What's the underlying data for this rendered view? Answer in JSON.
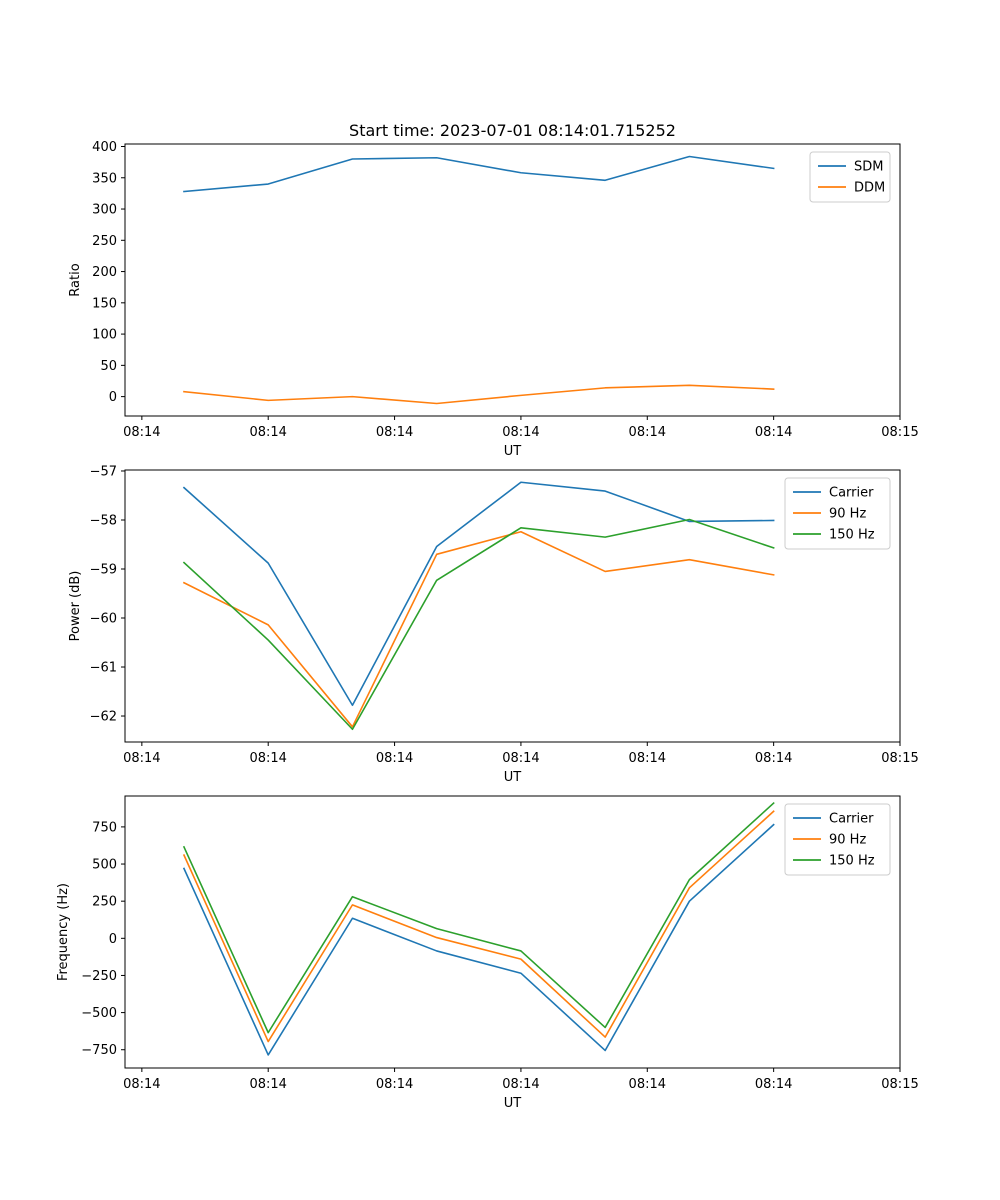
{
  "figure_title": "Start time: 2023-07-01 08:14:01.715252",
  "chart_data": [
    {
      "type": "line",
      "title": "Start time: 2023-07-01 08:14:01.715252",
      "xlabel": "UT",
      "ylabel": "Ratio",
      "x": [
        1,
        2,
        3,
        4,
        5,
        6,
        7,
        8
      ],
      "xlim": [
        0.3,
        9.5
      ],
      "x_ticks": [
        0.5,
        2.0,
        3.5,
        5.0,
        6.5,
        8.0,
        9.5
      ],
      "x_tick_labels": [
        "08:14",
        "08:14",
        "08:14",
        "08:14",
        "08:14",
        "08:14",
        "08:15"
      ],
      "ylim": [
        -31,
        404
      ],
      "y_ticks": [
        0,
        50,
        100,
        150,
        200,
        250,
        300,
        350,
        400
      ],
      "y_tick_labels": [
        "0",
        "50",
        "100",
        "150",
        "200",
        "250",
        "300",
        "350",
        "400"
      ],
      "legend_position": "top-right",
      "series": [
        {
          "name": "SDM",
          "color": "#1f77b4",
          "values": [
            328,
            340,
            380,
            382,
            358,
            346,
            384,
            365
          ]
        },
        {
          "name": "DDM",
          "color": "#ff7f0e",
          "values": [
            8,
            -6,
            0,
            -11,
            2,
            14,
            18,
            12
          ]
        }
      ]
    },
    {
      "type": "line",
      "title": "",
      "xlabel": "UT",
      "ylabel": "Power (dB)",
      "x": [
        1,
        2,
        3,
        4,
        5,
        6,
        7,
        8
      ],
      "xlim": [
        0.3,
        9.5
      ],
      "x_ticks": [
        0.5,
        2.0,
        3.5,
        5.0,
        6.5,
        8.0,
        9.5
      ],
      "x_tick_labels": [
        "08:14",
        "08:14",
        "08:14",
        "08:14",
        "08:14",
        "08:14",
        "08:15"
      ],
      "ylim": [
        -62.53,
        -56.98
      ],
      "y_ticks": [
        -62,
        -61,
        -60,
        -59,
        -58,
        -57
      ],
      "y_tick_labels": [
        "−62",
        "−61",
        "−60",
        "−59",
        "−58",
        "−57"
      ],
      "legend_position": "top-right",
      "series": [
        {
          "name": "Carrier",
          "color": "#1f77b4",
          "values": [
            -57.34,
            -58.88,
            -61.78,
            -58.54,
            -57.23,
            -57.41,
            -58.03,
            -58.01
          ]
        },
        {
          "name": "90 Hz",
          "color": "#ff7f0e",
          "values": [
            -59.28,
            -60.14,
            -62.22,
            -58.7,
            -58.24,
            -59.05,
            -58.81,
            -59.12
          ]
        },
        {
          "name": "150 Hz",
          "color": "#2ca02c",
          "values": [
            -58.87,
            -60.45,
            -62.27,
            -59.23,
            -58.16,
            -58.35,
            -57.99,
            -58.57
          ]
        }
      ]
    },
    {
      "type": "line",
      "title": "",
      "xlabel": "UT",
      "ylabel": "Frequency (Hz)",
      "x": [
        1,
        2,
        3,
        4,
        5,
        6,
        7,
        8
      ],
      "xlim": [
        0.3,
        9.5
      ],
      "x_ticks": [
        0.5,
        2.0,
        3.5,
        5.0,
        6.5,
        8.0,
        9.5
      ],
      "x_tick_labels": [
        "08:14",
        "08:14",
        "08:14",
        "08:14",
        "08:14",
        "08:14",
        "08:15"
      ],
      "ylim": [
        -873,
        958
      ],
      "y_ticks": [
        -750,
        -500,
        -250,
        0,
        250,
        500,
        750
      ],
      "y_tick_labels": [
        "−750",
        "−500",
        "−250",
        "0",
        "250",
        "500",
        "750"
      ],
      "legend_position": "top-right",
      "series": [
        {
          "name": "Carrier",
          "color": "#1f77b4",
          "values": [
            470,
            -785,
            135,
            -85,
            -235,
            -755,
            250,
            765
          ]
        },
        {
          "name": "90 Hz",
          "color": "#ff7f0e",
          "values": [
            560,
            -695,
            225,
            5,
            -140,
            -665,
            340,
            855
          ]
        },
        {
          "name": "150 Hz",
          "color": "#2ca02c",
          "values": [
            615,
            -635,
            280,
            65,
            -85,
            -600,
            395,
            910
          ]
        }
      ]
    }
  ]
}
